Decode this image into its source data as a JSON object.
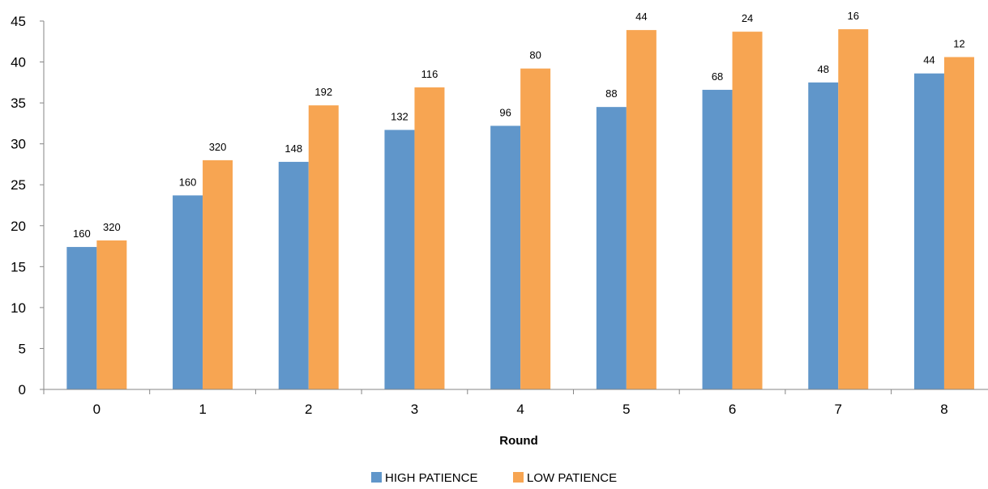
{
  "chart_data": {
    "type": "bar",
    "title": "",
    "xlabel": "Round",
    "ylabel": "",
    "categories": [
      "0",
      "1",
      "2",
      "3",
      "4",
      "5",
      "6",
      "7",
      "8"
    ],
    "ylim": [
      0,
      45
    ],
    "yticks": [
      0,
      5,
      10,
      15,
      20,
      25,
      30,
      35,
      40,
      45
    ],
    "grid": false,
    "legend_position": "bottom",
    "series": [
      {
        "name": "HIGH PATIENCE",
        "color": "#6096CA",
        "values": [
          17.4,
          23.7,
          27.8,
          31.7,
          32.2,
          34.5,
          36.6,
          37.5,
          38.6
        ],
        "labels": [
          "160",
          "160",
          "148",
          "132",
          "96",
          "88",
          "68",
          "48",
          "44"
        ]
      },
      {
        "name": "LOW PATIENCE",
        "color": "#F7A552",
        "values": [
          18.2,
          28.0,
          34.7,
          36.9,
          39.2,
          43.9,
          43.7,
          44.0,
          40.6
        ],
        "labels": [
          "320",
          "320",
          "192",
          "116",
          "80",
          "44",
          "24",
          "16",
          "12"
        ]
      }
    ]
  }
}
